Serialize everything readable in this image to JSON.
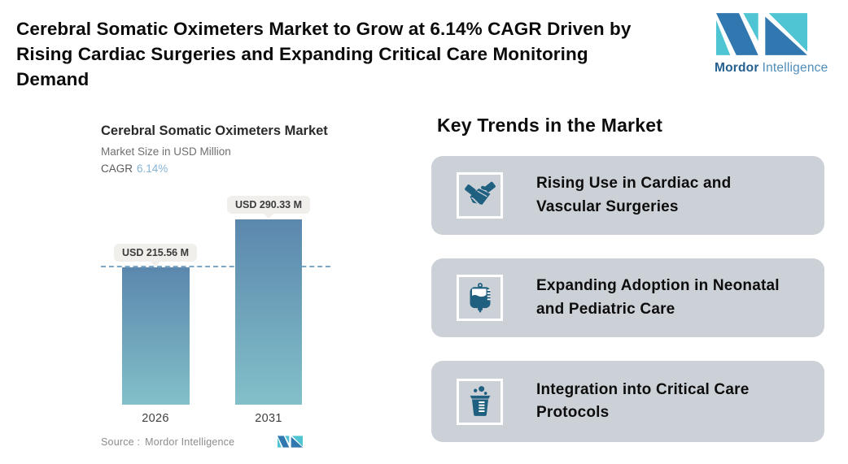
{
  "header": {
    "title_lines": [
      "Cerebral Somatic Oximeters Market to Grow at 6.14% CAGR Driven by",
      "Rising Cardiac Surgeries and Expanding Critical Care Monitoring",
      "Demand"
    ],
    "logo": {
      "brand_bold": "Mordor",
      "brand_light": "Intelligence"
    }
  },
  "chart": {
    "title": "Cerebral Somatic Oximeters Market",
    "subtitle": "Market Size in USD Million",
    "cagr_label": "CAGR",
    "cagr_value": "6.14%",
    "source_label": "Source :",
    "source_value": "Mordor Intelligence"
  },
  "chart_data": {
    "type": "bar",
    "title": "Cerebral Somatic Oximeters Market",
    "subtitle": "Market Size in USD Million",
    "cagr_percent": 6.14,
    "categories": [
      "2026",
      "2031"
    ],
    "values": [
      215.56,
      290.33
    ],
    "value_labels": [
      "USD 215.56 M",
      "USD 290.33 M"
    ],
    "unit": "USD Million",
    "baseline_value": 215.56,
    "baseline_style": "dashed",
    "ylim": [
      0,
      320
    ],
    "grid": false,
    "legend": false
  },
  "trends": {
    "heading": "Key Trends in the Market",
    "items": [
      {
        "icon": "handshake-icon",
        "lines": [
          "Rising Use in Cardiac and",
          "Vascular Surgeries"
        ]
      },
      {
        "icon": "iv-bag-icon",
        "lines": [
          "Expanding Adoption in Neonatal",
          "and Pediatric Care"
        ]
      },
      {
        "icon": "beaker-icon",
        "lines": [
          "Integration into Critical Care",
          "Protocols"
        ]
      }
    ]
  },
  "colors": {
    "accent_blue": "#85b4d6",
    "bar_top": "#5b87ad",
    "bar_bottom": "#82c0c9",
    "dashed_line": "#7aa9c9",
    "pill_bg": "#f0efec",
    "pill_text": "#3b3b3b",
    "card_bg": "#ccd1d7",
    "icon_blue": "#1f5f80",
    "logo_blue": "#3178b0",
    "logo_teal": "#4fc4d3",
    "wordmark_dark": "#255f8e",
    "wordmark_light": "#4e8dba"
  }
}
